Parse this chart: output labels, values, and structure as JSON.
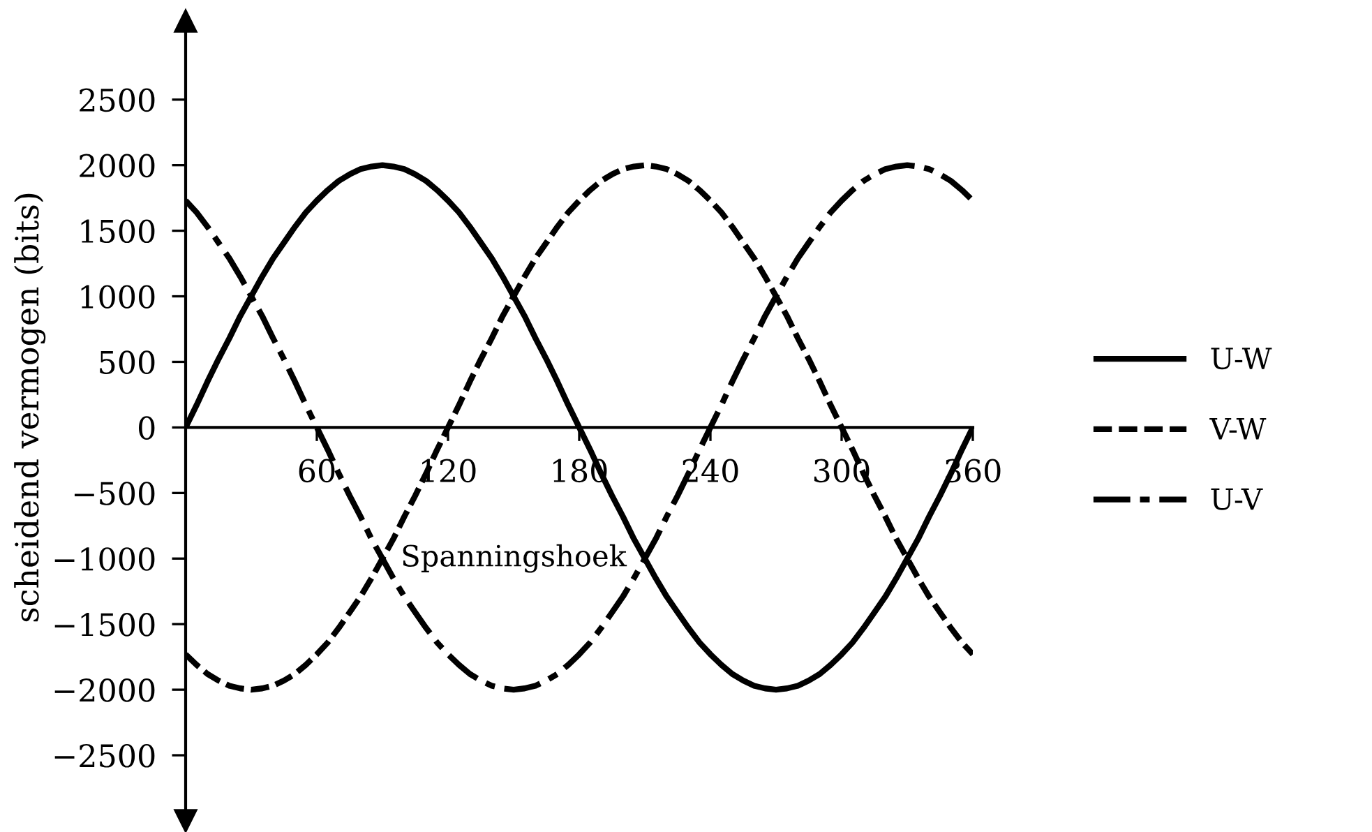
{
  "chart_data": {
    "type": "line",
    "xlabel": "Spanningshoek",
    "ylabel": "scheidend vermogen (bits)",
    "x": [
      0,
      5,
      10,
      15,
      20,
      25,
      30,
      35,
      40,
      45,
      50,
      55,
      60,
      65,
      70,
      75,
      80,
      85,
      90,
      95,
      100,
      105,
      110,
      115,
      120,
      125,
      130,
      135,
      140,
      145,
      150,
      155,
      160,
      165,
      170,
      175,
      180,
      185,
      190,
      195,
      200,
      205,
      210,
      215,
      220,
      225,
      230,
      235,
      240,
      245,
      250,
      255,
      260,
      265,
      270,
      275,
      280,
      285,
      290,
      295,
      300,
      305,
      310,
      315,
      320,
      325,
      330,
      335,
      340,
      345,
      350,
      355,
      360
    ],
    "series": [
      {
        "name": "U-W",
        "color": "#000000",
        "line_style": "solid",
        "values": [
          0,
          170,
          350,
          520,
          680,
          850,
          1000,
          1150,
          1290,
          1410,
          1530,
          1640,
          1730,
          1810,
          1880,
          1930,
          1970,
          1990,
          2000,
          1990,
          1970,
          1930,
          1880,
          1810,
          1730,
          1640,
          1530,
          1410,
          1290,
          1150,
          1000,
          850,
          680,
          520,
          350,
          170,
          0,
          -170,
          -350,
          -520,
          -680,
          -850,
          -1000,
          -1150,
          -1290,
          -1410,
          -1530,
          -1640,
          -1730,
          -1810,
          -1880,
          -1930,
          -1970,
          -1990,
          -2000,
          -1990,
          -1970,
          -1930,
          -1880,
          -1810,
          -1730,
          -1640,
          -1530,
          -1410,
          -1290,
          -1150,
          -1000,
          -850,
          -680,
          -520,
          -350,
          -170,
          0
        ]
      },
      {
        "name": "V-W",
        "color": "#000000",
        "line_style": "dashed",
        "values": [
          -1730,
          -1810,
          -1880,
          -1930,
          -1970,
          -1990,
          -2000,
          -1990,
          -1970,
          -1930,
          -1880,
          -1810,
          -1730,
          -1640,
          -1530,
          -1410,
          -1290,
          -1150,
          -1000,
          -850,
          -680,
          -520,
          -350,
          -170,
          0,
          170,
          350,
          520,
          680,
          850,
          1000,
          1150,
          1290,
          1410,
          1530,
          1640,
          1730,
          1810,
          1880,
          1930,
          1970,
          1990,
          2000,
          1990,
          1970,
          1930,
          1880,
          1810,
          1730,
          1640,
          1530,
          1410,
          1290,
          1150,
          1000,
          850,
          680,
          520,
          350,
          170,
          0,
          -170,
          -350,
          -520,
          -680,
          -850,
          -1000,
          -1150,
          -1290,
          -1410,
          -1530,
          -1640,
          -1730
        ]
      },
      {
        "name": "U-V",
        "color": "#000000",
        "line_style": "dashdot",
        "values": [
          1730,
          1640,
          1530,
          1410,
          1290,
          1150,
          1000,
          850,
          680,
          520,
          350,
          170,
          0,
          -170,
          -350,
          -520,
          -680,
          -850,
          -1000,
          -1150,
          -1290,
          -1410,
          -1530,
          -1640,
          -1730,
          -1810,
          -1880,
          -1930,
          -1970,
          -1990,
          -2000,
          -1990,
          -1970,
          -1930,
          -1880,
          -1810,
          -1730,
          -1640,
          -1530,
          -1410,
          -1290,
          -1150,
          -1000,
          -850,
          -680,
          -520,
          -350,
          -170,
          0,
          170,
          350,
          520,
          680,
          850,
          1000,
          1150,
          1290,
          1410,
          1530,
          1640,
          1730,
          1810,
          1880,
          1930,
          1970,
          1990,
          2000,
          1990,
          1970,
          1930,
          1880,
          1810,
          1730
        ]
      }
    ],
    "xlim": [
      0,
      360
    ],
    "xticks": [
      60,
      120,
      180,
      240,
      300,
      360
    ],
    "ylim": [
      -3000,
      3100
    ],
    "yticks": [
      {
        "value": -2500,
        "label": "−2500"
      },
      {
        "value": -2000,
        "label": "−2000"
      },
      {
        "value": -1500,
        "label": "−1500"
      },
      {
        "value": -1000,
        "label": "−1000"
      },
      {
        "value": -500,
        "label": "−500"
      },
      0,
      500,
      1000,
      1500,
      2000,
      2500
    ],
    "grid": false,
    "legend": "right",
    "marker": "none"
  }
}
